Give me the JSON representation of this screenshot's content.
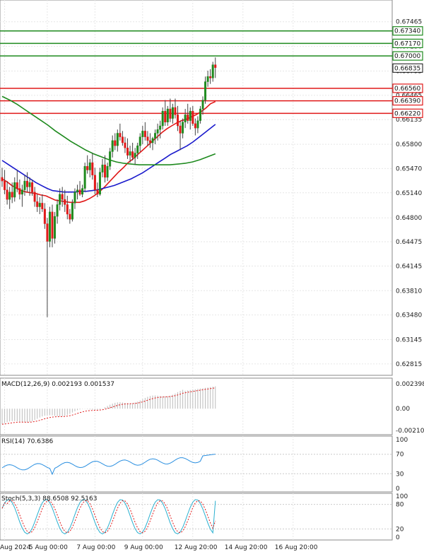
{
  "chart_data": {
    "type": "candlestick",
    "price_axis": {
      "ticks": [
        0.67465,
        0.6713,
        0.66795,
        0.66465,
        0.66135,
        0.658,
        0.6547,
        0.6514,
        0.648,
        0.64475,
        0.64145,
        0.6381,
        0.6348,
        0.63145,
        0.62815
      ],
      "tick_labels": [
        "0.67465",
        "0.67130",
        "0.66795",
        "0.66465",
        "0.66135",
        "0.65800",
        "0.65470",
        "0.65140",
        "0.64800",
        "0.64475",
        "0.64145",
        "0.63810",
        "0.63480",
        "0.63145",
        "0.62815"
      ],
      "range": [
        0.6266,
        0.6776
      ]
    },
    "time_axis": {
      "labels": [
        "Aug 2024",
        "5 Aug 00:00",
        "7 Aug 00:00",
        "9 Aug 00:00",
        "12 Aug 20:00",
        "14 Aug 20:00",
        "16 Aug 20:00"
      ],
      "label_candle_index": [
        1,
        18,
        37,
        56,
        76,
        96,
        116
      ]
    },
    "horizontal_levels": [
      {
        "value": 0.6734,
        "label": "0.67340",
        "color": "#1e8a1e"
      },
      {
        "value": 0.6717,
        "label": "0.67170",
        "color": "#1e8a1e"
      },
      {
        "value": 0.67,
        "label": "0.67000",
        "color": "#1e8a1e"
      },
      {
        "value": 0.6656,
        "label": "0.66560",
        "color": "#e01818"
      },
      {
        "value": 0.6639,
        "label": "0.66390",
        "color": "#e01818"
      },
      {
        "value": 0.6622,
        "label": "0.66220",
        "color": "#e01818"
      }
    ],
    "last_price": {
      "value": 0.66835,
      "label": "0.66835"
    },
    "candles_ohlc": [
      [
        0.6535,
        0.6548,
        0.6522,
        0.653
      ],
      [
        0.653,
        0.6545,
        0.6512,
        0.6518
      ],
      [
        0.6518,
        0.653,
        0.6498,
        0.6505
      ],
      [
        0.6505,
        0.6522,
        0.6492,
        0.6515
      ],
      [
        0.6515,
        0.6528,
        0.65,
        0.6508
      ],
      [
        0.6508,
        0.6535,
        0.6502,
        0.6528
      ],
      [
        0.6528,
        0.6545,
        0.6515,
        0.652
      ],
      [
        0.652,
        0.6532,
        0.6505,
        0.6512
      ],
      [
        0.6512,
        0.6525,
        0.6495,
        0.6518
      ],
      [
        0.6518,
        0.6538,
        0.651,
        0.653
      ],
      [
        0.653,
        0.6542,
        0.6515,
        0.6522
      ],
      [
        0.6522,
        0.6535,
        0.651,
        0.6528
      ],
      [
        0.6528,
        0.6532,
        0.651,
        0.6515
      ],
      [
        0.6515,
        0.6522,
        0.6495,
        0.6502
      ],
      [
        0.6502,
        0.6512,
        0.6488,
        0.6495
      ],
      [
        0.6495,
        0.6508,
        0.6485,
        0.65
      ],
      [
        0.65,
        0.6512,
        0.6488,
        0.6492
      ],
      [
        0.6492,
        0.65,
        0.6465,
        0.6472
      ],
      [
        0.6472,
        0.648,
        0.6345,
        0.6448
      ],
      [
        0.6448,
        0.6495,
        0.644,
        0.6488
      ],
      [
        0.6488,
        0.6498,
        0.644,
        0.6452
      ],
      [
        0.6452,
        0.6488,
        0.6445,
        0.6482
      ],
      [
        0.6482,
        0.6505,
        0.6472,
        0.6498
      ],
      [
        0.6498,
        0.652,
        0.649,
        0.6512
      ],
      [
        0.6512,
        0.6522,
        0.6495,
        0.6505
      ],
      [
        0.6505,
        0.6518,
        0.6488,
        0.6498
      ],
      [
        0.6498,
        0.651,
        0.6478,
        0.6485
      ],
      [
        0.6485,
        0.6492,
        0.6472,
        0.6478
      ],
      [
        0.6478,
        0.6505,
        0.6475,
        0.65
      ],
      [
        0.65,
        0.652,
        0.6492,
        0.6515
      ],
      [
        0.6515,
        0.6525,
        0.6505,
        0.6518
      ],
      [
        0.6518,
        0.653,
        0.651,
        0.6512
      ],
      [
        0.6512,
        0.6525,
        0.6508,
        0.652
      ],
      [
        0.652,
        0.6555,
        0.6515,
        0.655
      ],
      [
        0.655,
        0.6565,
        0.654,
        0.6545
      ],
      [
        0.6545,
        0.656,
        0.6535,
        0.6555
      ],
      [
        0.6555,
        0.6568,
        0.6532,
        0.6538
      ],
      [
        0.6538,
        0.6548,
        0.6512,
        0.6518
      ],
      [
        0.6518,
        0.6528,
        0.6508,
        0.6512
      ],
      [
        0.6512,
        0.6548,
        0.651,
        0.6542
      ],
      [
        0.6542,
        0.656,
        0.6535,
        0.6552
      ],
      [
        0.6552,
        0.6565,
        0.6528,
        0.6535
      ],
      [
        0.6535,
        0.6555,
        0.653,
        0.655
      ],
      [
        0.655,
        0.6575,
        0.6545,
        0.657
      ],
      [
        0.657,
        0.6592,
        0.6562,
        0.6585
      ],
      [
        0.6585,
        0.6595,
        0.6572,
        0.6578
      ],
      [
        0.6578,
        0.66,
        0.657,
        0.6595
      ],
      [
        0.6595,
        0.6608,
        0.6585,
        0.659
      ],
      [
        0.659,
        0.6598,
        0.6578,
        0.6582
      ],
      [
        0.6582,
        0.659,
        0.6568,
        0.6575
      ],
      [
        0.6575,
        0.6588,
        0.656,
        0.6565
      ],
      [
        0.6565,
        0.6578,
        0.6555,
        0.657
      ],
      [
        0.657,
        0.6582,
        0.6558,
        0.6562
      ],
      [
        0.6562,
        0.6575,
        0.6552,
        0.6568
      ],
      [
        0.6568,
        0.6582,
        0.656,
        0.6578
      ],
      [
        0.6578,
        0.6595,
        0.657,
        0.659
      ],
      [
        0.659,
        0.6605,
        0.658,
        0.6598
      ],
      [
        0.6598,
        0.661,
        0.6585,
        0.659
      ],
      [
        0.659,
        0.6598,
        0.6578,
        0.6585
      ],
      [
        0.6585,
        0.6595,
        0.6575,
        0.6582
      ],
      [
        0.6582,
        0.659,
        0.6572,
        0.6588
      ],
      [
        0.6588,
        0.66,
        0.658,
        0.6595
      ],
      [
        0.6595,
        0.6608,
        0.6585,
        0.66
      ],
      [
        0.66,
        0.6612,
        0.6588,
        0.6605
      ],
      [
        0.6605,
        0.663,
        0.66,
        0.6625
      ],
      [
        0.6625,
        0.664,
        0.6605,
        0.661
      ],
      [
        0.661,
        0.6632,
        0.6605,
        0.6628
      ],
      [
        0.6628,
        0.6642,
        0.661,
        0.6615
      ],
      [
        0.6615,
        0.6635,
        0.6608,
        0.663
      ],
      [
        0.663,
        0.6642,
        0.6615,
        0.662
      ],
      [
        0.662,
        0.6632,
        0.6598,
        0.6605
      ],
      [
        0.6605,
        0.6612,
        0.6572,
        0.6595
      ],
      [
        0.6595,
        0.6615,
        0.6588,
        0.661
      ],
      [
        0.661,
        0.6628,
        0.6602,
        0.662
      ],
      [
        0.662,
        0.6635,
        0.6608,
        0.6612
      ],
      [
        0.6612,
        0.663,
        0.66,
        0.6625
      ],
      [
        0.6625,
        0.6632,
        0.6605,
        0.6608
      ],
      [
        0.6608,
        0.6615,
        0.6592,
        0.6602
      ],
      [
        0.6602,
        0.6618,
        0.6595,
        0.6612
      ],
      [
        0.6612,
        0.6632,
        0.6608,
        0.6628
      ],
      [
        0.6628,
        0.6645,
        0.662,
        0.664
      ],
      [
        0.664,
        0.6672,
        0.6635,
        0.6665
      ],
      [
        0.6665,
        0.668,
        0.6658,
        0.6672
      ],
      [
        0.6672,
        0.6682,
        0.6662,
        0.667
      ],
      [
        0.667,
        0.6692,
        0.6665,
        0.6688
      ],
      [
        0.6688,
        0.6698,
        0.667,
        0.6684
      ]
    ],
    "candles_ohlc_note_series": [],
    "moving_averages": [
      {
        "color": "#e01818",
        "values": [
          0.6533,
          0.6529,
          0.6524,
          0.652,
          0.6517,
          0.6515,
          0.6514,
          0.6513,
          0.6511,
          0.651,
          0.6507,
          0.6504,
          0.6503,
          0.6502,
          0.6501,
          0.6501,
          0.6501,
          0.6503,
          0.6506,
          0.651,
          0.6515,
          0.6521,
          0.6528,
          0.6535,
          0.6542,
          0.6548,
          0.6555,
          0.656,
          0.6566,
          0.6572,
          0.6578,
          0.6584,
          0.659,
          0.6596,
          0.6601,
          0.6605,
          0.6609,
          0.6612,
          0.6614,
          0.6617,
          0.662,
          0.6624,
          0.6629,
          0.6635,
          0.6638
        ]
      },
      {
        "color": "#1a1acc",
        "values": [
          0.6558,
          0.6553,
          0.6548,
          0.6543,
          0.6538,
          0.6533,
          0.6528,
          0.6524,
          0.652,
          0.6517,
          0.6516,
          0.6515,
          0.6515,
          0.6515,
          0.6516,
          0.6516,
          0.6517,
          0.6518,
          0.652,
          0.6522,
          0.6524,
          0.6527,
          0.653,
          0.6533,
          0.6537,
          0.6541,
          0.6546,
          0.6551,
          0.6556,
          0.6561,
          0.6566,
          0.657,
          0.6574,
          0.6578,
          0.6583,
          0.6589,
          0.6595,
          0.6601,
          0.6607
        ]
      },
      {
        "color": "#1e8a1e",
        "values": [
          0.6645,
          0.664,
          0.6634,
          0.6627,
          0.662,
          0.6613,
          0.6606,
          0.6598,
          0.6591,
          0.6584,
          0.6578,
          0.6572,
          0.6567,
          0.6563,
          0.6559,
          0.6556,
          0.6554,
          0.6553,
          0.6552,
          0.6552,
          0.6552,
          0.6552,
          0.6552,
          0.6553,
          0.6554,
          0.6556,
          0.6559,
          0.6563,
          0.6567
        ]
      }
    ],
    "macd": {
      "label": "MACD(12,26,9) 0.002193 0.001537",
      "ticks": [
        "0.002398",
        "0.00",
        "-0.002103"
      ]
    },
    "rsi": {
      "label": "RSI(14) 70.6386",
      "ticks": [
        "100",
        "70",
        "30",
        "0"
      ]
    },
    "stoch": {
      "label": "Stoch(5,3,3) 88.6508 92.5163",
      "ticks": [
        "100",
        "80",
        "20",
        "0"
      ]
    },
    "grid": true,
    "colors": {
      "bull": "#1e8a1e",
      "bear": "#e01818",
      "signal": "#e01818",
      "rsi": "#2a8fe0",
      "stoch_main": "#2ab0d0",
      "stoch_signal": "#e01818"
    }
  }
}
